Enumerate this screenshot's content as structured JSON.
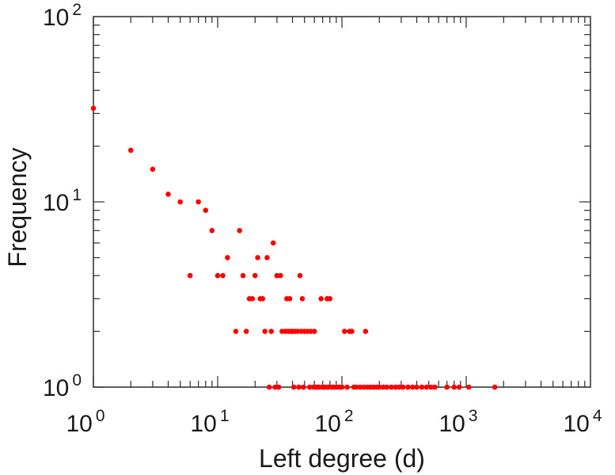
{
  "chart_data": {
    "type": "scatter",
    "title": "",
    "xlabel": "Left degree (d)",
    "ylabel": "Frequency",
    "x_scale": "log",
    "y_scale": "log",
    "xlim": [
      1,
      10000
    ],
    "ylim": [
      1,
      100
    ],
    "x_ticks": [
      {
        "base": "10",
        "exp": "0"
      },
      {
        "base": "10",
        "exp": "1"
      },
      {
        "base": "10",
        "exp": "2"
      },
      {
        "base": "10",
        "exp": "3"
      },
      {
        "base": "10",
        "exp": "4"
      }
    ],
    "y_ticks": [
      {
        "base": "10",
        "exp": "0"
      },
      {
        "base": "10",
        "exp": "1"
      },
      {
        "base": "10",
        "exp": "2"
      }
    ],
    "grid": false,
    "marker_color": "#ff0000",
    "points": [
      [
        1,
        32
      ],
      [
        2,
        19
      ],
      [
        3,
        15
      ],
      [
        4,
        11
      ],
      [
        5,
        10
      ],
      [
        6,
        4
      ],
      [
        7,
        10
      ],
      [
        8,
        9
      ],
      [
        9,
        7
      ],
      [
        10,
        4
      ],
      [
        11,
        4
      ],
      [
        12,
        5
      ],
      [
        14,
        2
      ],
      [
        15,
        7
      ],
      [
        16,
        4
      ],
      [
        17,
        2
      ],
      [
        18,
        3
      ],
      [
        19,
        3
      ],
      [
        20,
        4
      ],
      [
        21,
        5
      ],
      [
        22,
        3
      ],
      [
        23,
        3
      ],
      [
        24,
        2
      ],
      [
        25,
        5
      ],
      [
        26,
        1
      ],
      [
        27,
        2
      ],
      [
        28,
        6
      ],
      [
        29,
        1
      ],
      [
        30,
        4
      ],
      [
        31,
        1
      ],
      [
        32,
        4
      ],
      [
        33,
        2
      ],
      [
        35,
        2
      ],
      [
        36,
        3
      ],
      [
        37,
        2
      ],
      [
        38,
        3
      ],
      [
        39,
        2
      ],
      [
        40,
        2
      ],
      [
        41,
        1
      ],
      [
        42,
        2
      ],
      [
        44,
        2
      ],
      [
        45,
        1
      ],
      [
        46,
        4
      ],
      [
        47,
        2
      ],
      [
        48,
        3
      ],
      [
        49,
        1
      ],
      [
        50,
        2
      ],
      [
        53,
        2
      ],
      [
        55,
        1
      ],
      [
        56,
        2
      ],
      [
        59,
        1
      ],
      [
        60,
        2
      ],
      [
        62,
        1
      ],
      [
        64,
        1
      ],
      [
        66,
        1
      ],
      [
        68,
        3
      ],
      [
        70,
        1
      ],
      [
        72,
        1
      ],
      [
        74,
        1
      ],
      [
        76,
        3
      ],
      [
        78,
        1
      ],
      [
        80,
        3
      ],
      [
        83,
        1
      ],
      [
        86,
        1
      ],
      [
        90,
        1
      ],
      [
        95,
        1
      ],
      [
        100,
        1
      ],
      [
        105,
        2
      ],
      [
        110,
        1
      ],
      [
        115,
        2
      ],
      [
        120,
        2
      ],
      [
        125,
        1
      ],
      [
        130,
        1
      ],
      [
        140,
        1
      ],
      [
        150,
        1
      ],
      [
        155,
        2
      ],
      [
        160,
        1
      ],
      [
        170,
        1
      ],
      [
        180,
        1
      ],
      [
        190,
        1
      ],
      [
        200,
        1
      ],
      [
        215,
        1
      ],
      [
        230,
        1
      ],
      [
        250,
        1
      ],
      [
        270,
        1
      ],
      [
        290,
        1
      ],
      [
        310,
        1
      ],
      [
        340,
        1
      ],
      [
        370,
        1
      ],
      [
        400,
        1
      ],
      [
        440,
        1
      ],
      [
        480,
        1
      ],
      [
        520,
        1
      ],
      [
        560,
        1
      ],
      [
        700,
        1
      ],
      [
        800,
        1
      ],
      [
        880,
        1
      ],
      [
        1050,
        1
      ],
      [
        1700,
        1
      ]
    ]
  }
}
